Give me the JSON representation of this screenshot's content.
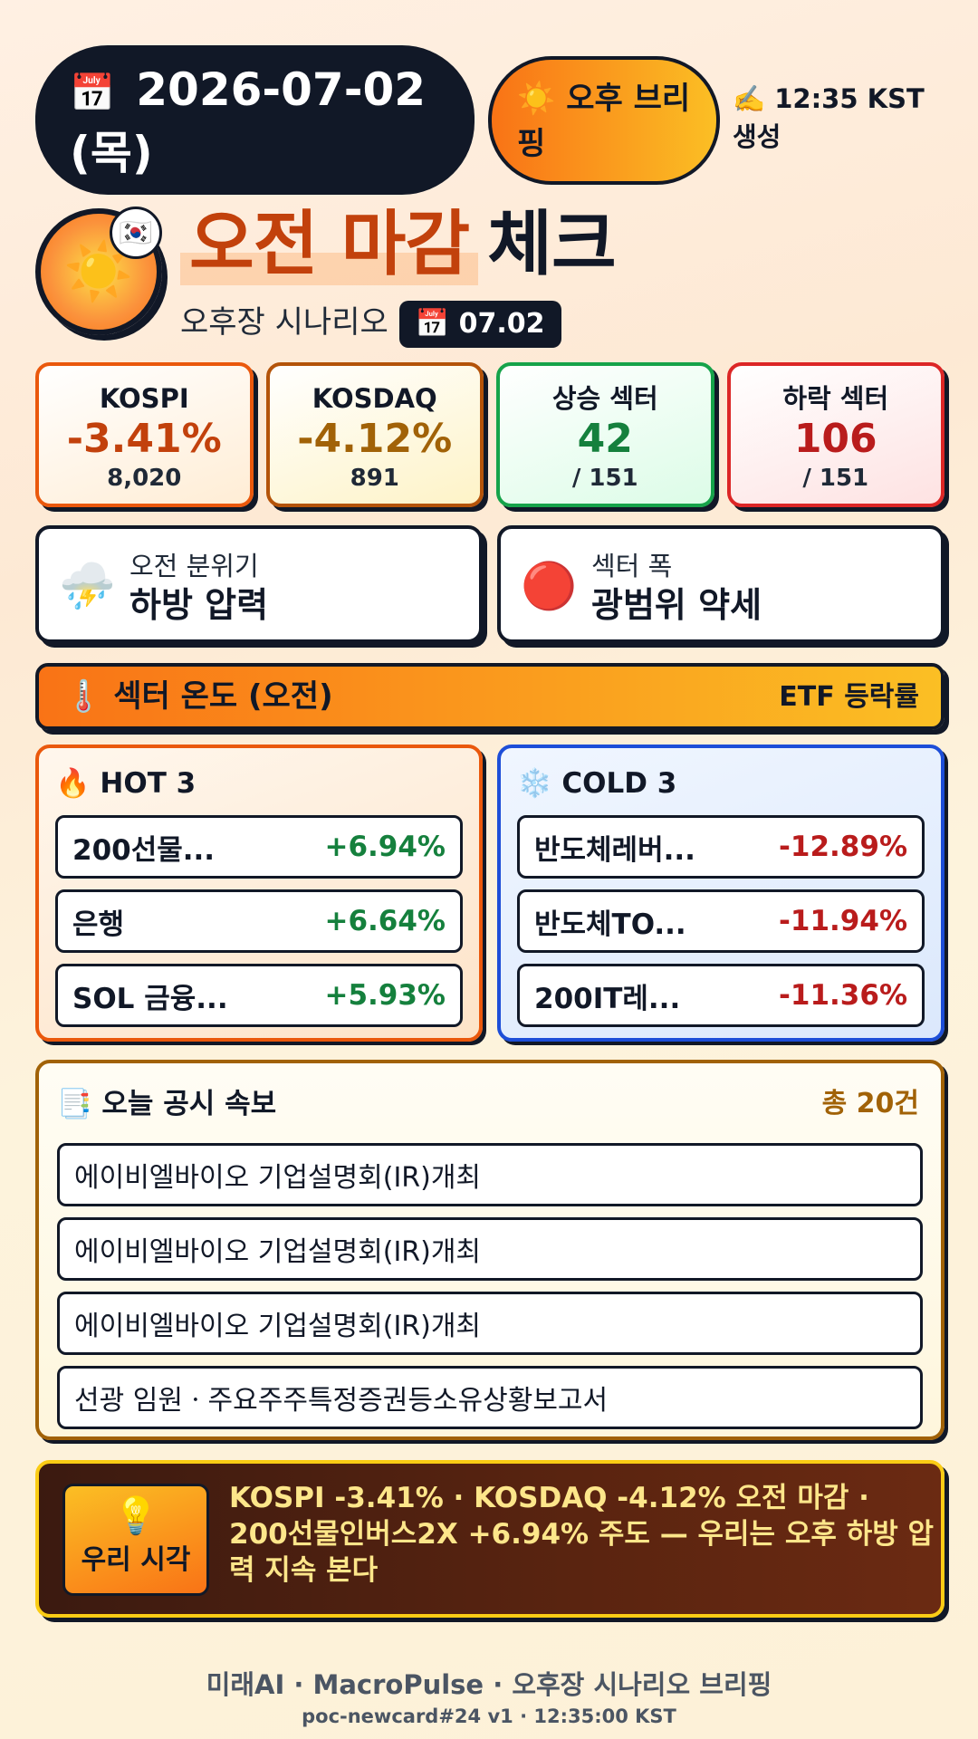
{
  "header": {
    "date_icon": "📅",
    "date": "2026-07-02",
    "weekday": "(목)",
    "slot_icon": "☀️",
    "slot_label": "오후 브리핑",
    "gen_icon": "✍️",
    "gen_time": "12:35 KST",
    "gen_suffix": "생성"
  },
  "title": {
    "sun_icon": "☀️",
    "flag_icon": "🇰🇷",
    "accent": "오전 마감",
    "rest": "체크",
    "subtitle": "오후장 시나리오",
    "chip_icon": "📅",
    "chip_date": "07.02"
  },
  "cards": [
    {
      "label": "KOSPI",
      "value": "-3.41%",
      "sub": "8,020"
    },
    {
      "label": "KOSDAQ",
      "value": "-4.12%",
      "sub": "891"
    },
    {
      "label": "상승 섹터",
      "value": "42",
      "sub": "/ 151"
    },
    {
      "label": "하락 섹터",
      "value": "106",
      "sub": "/ 151"
    }
  ],
  "moods": [
    {
      "icon": "⛈️",
      "label": "오전 분위기",
      "value": "하방 압력"
    },
    {
      "icon": "🔴",
      "label": "섹터 폭",
      "value": "광범위 약세"
    }
  ],
  "sector_bar": {
    "icon": "🌡️",
    "title": "섹터 온도 (오전)",
    "right": "ETF 등락률"
  },
  "hot": {
    "icon": "🔥",
    "title": "HOT 3",
    "items": [
      {
        "name": "200선물...",
        "pct": "+6.94%"
      },
      {
        "name": "은행",
        "pct": "+6.64%"
      },
      {
        "name": "SOL 금융...",
        "pct": "+5.93%"
      }
    ]
  },
  "cold": {
    "icon": "❄️",
    "title": "COLD 3",
    "items": [
      {
        "name": "반도체레버...",
        "pct": "-12.89%"
      },
      {
        "name": "반도체TO...",
        "pct": "-11.94%"
      },
      {
        "name": "200IT레...",
        "pct": "-11.36%"
      }
    ]
  },
  "disclosure": {
    "icon": "📑",
    "title": "오늘 공시 속보",
    "count": "총 20건",
    "items": [
      "에이비엘바이오 기업설명회(IR)개최",
      "에이비엘바이오 기업설명회(IR)개최",
      "에이비엘바이오 기업설명회(IR)개최",
      "선광 임원ㆍ주요주주특정증권등소유상황보고서"
    ]
  },
  "insight": {
    "icon": "💡",
    "label": "우리 시각",
    "text": "KOSPI -3.41% · KOSDAQ -4.12% 오전 마감 · 200선물인버스2X +6.94% 주도 — 우리는 오후 하방 압력 지속 본다"
  },
  "footer": {
    "line1": "미래AI · MacroPulse · 오후장 시나리오 브리핑",
    "line2": "poc-newcard#24 v1 · 12:35:00 KST"
  }
}
